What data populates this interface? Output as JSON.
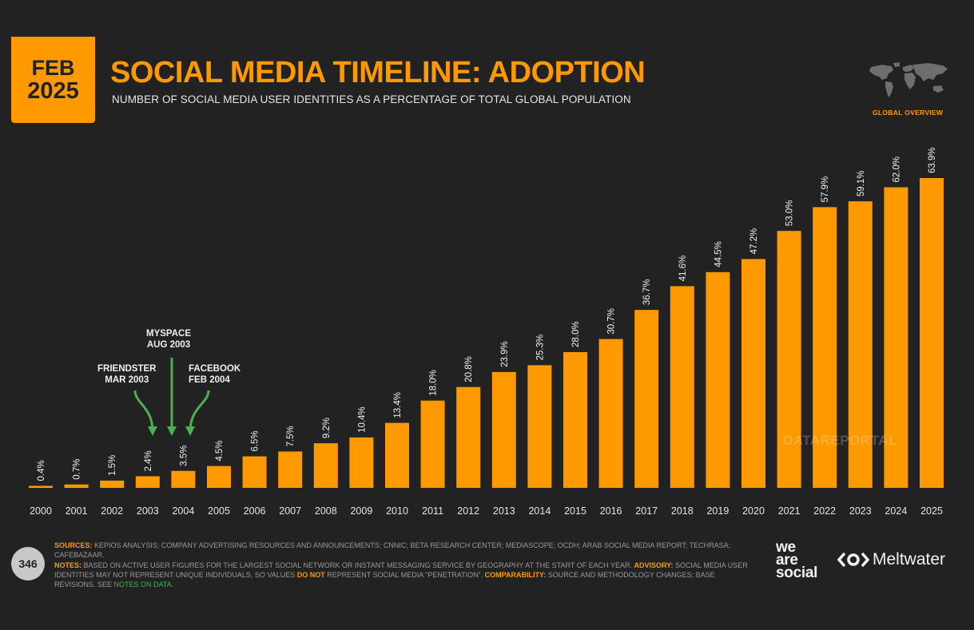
{
  "header": {
    "badge_month": "FEB",
    "badge_year": "2025",
    "title": "SOCIAL MEDIA TIMELINE: ADOPTION",
    "subtitle": "NUMBER OF SOCIAL MEDIA USER IDENTITIES AS A PERCENTAGE OF TOTAL GLOBAL POPULATION",
    "section_label": "GLOBAL OVERVIEW",
    "section_icon": "world-map-icon"
  },
  "chart_data": {
    "type": "bar",
    "title": "SOCIAL MEDIA TIMELINE: ADOPTION",
    "xlabel": "",
    "ylabel": "Social media user identities as % of global population",
    "ylim": [
      0,
      70
    ],
    "grid": false,
    "categories": [
      "2000",
      "2001",
      "2002",
      "2003",
      "2004",
      "2005",
      "2006",
      "2007",
      "2008",
      "2009",
      "2010",
      "2011",
      "2012",
      "2013",
      "2014",
      "2015",
      "2016",
      "2017",
      "2018",
      "2019",
      "2020",
      "2021",
      "2022",
      "2023",
      "2024",
      "2025"
    ],
    "values": [
      0.4,
      0.7,
      1.5,
      2.4,
      3.5,
      4.5,
      6.5,
      7.5,
      9.2,
      10.4,
      13.4,
      18.0,
      20.8,
      23.9,
      25.3,
      28.0,
      30.7,
      36.7,
      41.6,
      44.5,
      47.2,
      53.0,
      57.9,
      59.1,
      62.0,
      63.9
    ],
    "labels": [
      "0.4%",
      "0.7%",
      "1.5%",
      "2.4%",
      "3.5%",
      "4.5%",
      "6.5%",
      "7.5%",
      "9.2%",
      "10.4%",
      "13.4%",
      "18.0%",
      "20.8%",
      "23.9%",
      "25.3%",
      "28.0%",
      "30.7%",
      "36.7%",
      "41.6%",
      "44.5%",
      "47.2%",
      "53.0%",
      "57.9%",
      "59.1%",
      "62.0%",
      "63.9%"
    ],
    "bar_color": "#ff9900",
    "annotations": [
      {
        "name": "friendster",
        "lines": [
          "FRIENDSTER",
          "MAR 2003"
        ],
        "points_to": "2003"
      },
      {
        "name": "myspace",
        "lines": [
          "MYSPACE",
          "AUG 2003"
        ],
        "points_to": "2003-2004"
      },
      {
        "name": "facebook",
        "lines": [
          "FACEBOOK",
          "FEB 2004"
        ],
        "points_to": "2004"
      }
    ],
    "arrow_color": "#4caf50"
  },
  "watermark": "DATAREPORTAL",
  "footer": {
    "page_number": "346",
    "sources_label": "SOURCES:",
    "sources_text": " KEPIOS ANALYSIS; COMPANY ADVERTISING RESOURCES AND ANNOUNCEMENTS; CNNIC; BETA RESEARCH CENTER; MEDIASCOPE; OCDH; ARAB SOCIAL MEDIA REPORT; TECHRASA; CAFEBAZAAR.",
    "notes_label": "NOTES:",
    "notes_text": " BASED ON ACTIVE USER FIGURES FOR THE LARGEST SOCIAL NETWORK OR INSTANT MESSAGING SERVICE BY GEOGRAPHY AT THE START OF EACH YEAR. ",
    "advisory_label": "ADVISORY:",
    "advisory_text_1": " SOCIAL MEDIA USER IDENTITIES MAY NOT REPRESENT UNIQUE INDIVIDUALS, SO VALUES ",
    "advisory_highlight": "DO NOT",
    "advisory_text_2": " REPRESENT SOCIAL MEDIA “PENETRATION”. ",
    "comparability_label": "COMPARABILITY:",
    "comparability_text": " SOURCE AND METHODOLOGY CHANGES; BASE REVISIONS. SEE ",
    "notes_link": "NOTES ON DATA",
    "notes_link_end": "."
  },
  "brands": {
    "was_line1": "we",
    "was_line2": "are",
    "was_line3": "social",
    "meltwater": "Meltwater",
    "meltwater_icon": "meltwater-eye-icon"
  },
  "colors": {
    "background": "#222222",
    "accent": "#ff9900",
    "link_green": "#4caf50"
  }
}
